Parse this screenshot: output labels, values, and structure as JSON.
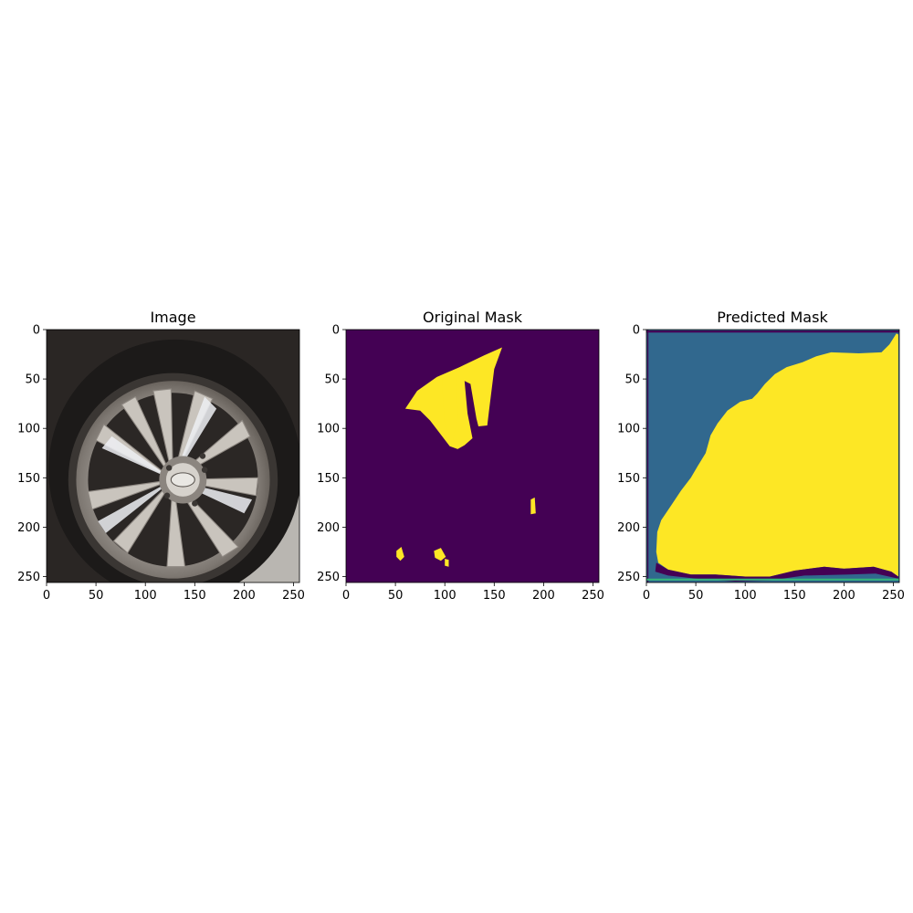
{
  "figure": {
    "background": "#ffffff",
    "colors": {
      "viridis_dark": "#440154",
      "viridis_teal": "#31688e",
      "viridis_green": "#35b779",
      "viridis_yellow": "#fde725",
      "axis": "#000000"
    }
  },
  "chart_data": [
    {
      "type": "image",
      "title": "Image",
      "content": "wheel-photo",
      "xlim": [
        0,
        256
      ],
      "ylim": [
        256,
        0
      ],
      "xticks": [
        0,
        50,
        100,
        150,
        200,
        250
      ],
      "yticks": [
        0,
        50,
        100,
        150,
        200,
        250
      ],
      "grid": false
    },
    {
      "type": "heatmap",
      "title": "Original Mask",
      "colormap": "viridis",
      "xlim": [
        0,
        256
      ],
      "ylim": [
        256,
        0
      ],
      "xticks": [
        0,
        50,
        100,
        150,
        200,
        250
      ],
      "yticks": [
        0,
        50,
        100,
        150,
        200,
        250
      ],
      "grid": false,
      "background_value_color": "#440154",
      "regions": [
        {
          "label": "damage",
          "color": "#fde725",
          "polygon": [
            [
              60,
              80
            ],
            [
              72,
              62
            ],
            [
              92,
              48
            ],
            [
              115,
              38
            ],
            [
              140,
              26
            ],
            [
              158,
              18
            ],
            [
              150,
              40
            ],
            [
              145,
              80
            ],
            [
              143,
              97
            ],
            [
              134,
              98
            ],
            [
              132,
              90
            ],
            [
              126,
              55
            ],
            [
              120,
              52
            ],
            [
              123,
              85
            ],
            [
              128,
              110
            ],
            [
              120,
              117
            ],
            [
              113,
              121
            ],
            [
              105,
              118
            ],
            [
              95,
              105
            ],
            [
              85,
              92
            ],
            [
              75,
              82
            ]
          ]
        },
        {
          "label": "damage",
          "color": "#fde725",
          "polygon": [
            [
              97,
              46
            ],
            [
              112,
              40
            ],
            [
              113,
              90
            ],
            [
              108,
              112
            ],
            [
              100,
              96
            ],
            [
              98,
              65
            ]
          ]
        },
        {
          "label": "damage",
          "color": "#fde725",
          "polygon": [
            [
              187,
              172
            ],
            [
              191,
              170
            ],
            [
              192,
              186
            ],
            [
              187,
              187
            ]
          ]
        },
        {
          "label": "damage",
          "color": "#fde725",
          "polygon": [
            [
              51,
              224
            ],
            [
              56,
              220
            ],
            [
              59,
              230
            ],
            [
              55,
              234
            ],
            [
              51,
              230
            ]
          ]
        },
        {
          "label": "damage",
          "color": "#fde725",
          "polygon": [
            [
              89,
              224
            ],
            [
              96,
              221
            ],
            [
              101,
              230
            ],
            [
              96,
              234
            ],
            [
              90,
              231
            ]
          ]
        },
        {
          "label": "damage",
          "color": "#fde725",
          "polygon": [
            [
              100,
              232
            ],
            [
              104,
              233
            ],
            [
              104,
              240
            ],
            [
              100,
              239
            ]
          ]
        }
      ]
    },
    {
      "type": "heatmap",
      "title": "Predicted Mask",
      "colormap": "viridis",
      "xlim": [
        0,
        256
      ],
      "ylim": [
        256,
        0
      ],
      "xticks": [
        0,
        50,
        100,
        150,
        200,
        250
      ],
      "yticks": [
        0,
        50,
        100,
        150,
        200,
        250
      ],
      "grid": false,
      "background_value_color": "#31688e",
      "regions": [
        {
          "label": "predicted-damage",
          "color": "#fde725",
          "polygon": [
            [
              10,
              225
            ],
            [
              11,
              205
            ],
            [
              15,
              193
            ],
            [
              25,
              178
            ],
            [
              35,
              163
            ],
            [
              45,
              150
            ],
            [
              52,
              138
            ],
            [
              60,
              125
            ],
            [
              65,
              107
            ],
            [
              72,
              95
            ],
            [
              82,
              82
            ],
            [
              95,
              73
            ],
            [
              107,
              70
            ],
            [
              112,
              65
            ],
            [
              120,
              55
            ],
            [
              130,
              45
            ],
            [
              142,
              38
            ],
            [
              158,
              33
            ],
            [
              172,
              27
            ],
            [
              187,
              23
            ],
            [
              215,
              24
            ],
            [
              238,
              23
            ],
            [
              246,
              15
            ],
            [
              253,
              4
            ],
            [
              255,
              5
            ],
            [
              255,
              250
            ],
            [
              248,
              245
            ],
            [
              230,
              240
            ],
            [
              200,
              242
            ],
            [
              180,
              240
            ],
            [
              150,
              244
            ],
            [
              125,
              250
            ],
            [
              100,
              250
            ],
            [
              70,
              248
            ],
            [
              45,
              248
            ],
            [
              22,
              243
            ],
            [
              12,
              236
            ]
          ]
        },
        {
          "label": "edge",
          "color": "#440154",
          "polygon": [
            [
              10,
              236
            ],
            [
              22,
              243
            ],
            [
              45,
              248
            ],
            [
              70,
              248
            ],
            [
              100,
              250
            ],
            [
              125,
              250
            ],
            [
              150,
              244
            ],
            [
              180,
              240
            ],
            [
              200,
              242
            ],
            [
              230,
              240
            ],
            [
              248,
              245
            ],
            [
              255,
              250
            ],
            [
              255,
              252
            ],
            [
              232,
              247
            ],
            [
              205,
              248
            ],
            [
              160,
              249
            ],
            [
              125,
              254
            ],
            [
              90,
              255
            ],
            [
              50,
              252
            ],
            [
              22,
              249
            ],
            [
              9,
              245
            ]
          ]
        },
        {
          "label": "edge",
          "color": "#440154",
          "polygon": [
            [
              0,
              1
            ],
            [
              256,
              1
            ],
            [
              256,
              3
            ],
            [
              0,
              3
            ]
          ]
        },
        {
          "label": "edge",
          "color": "#440154",
          "polygon": [
            [
              1,
              0
            ],
            [
              2,
              0
            ],
            [
              2,
              256
            ],
            [
              1,
              256
            ]
          ]
        },
        {
          "label": "edge",
          "color": "#35b779",
          "polygon": [
            [
              0,
              252
            ],
            [
              256,
              252
            ],
            [
              256,
              254
            ],
            [
              0,
              254
            ]
          ]
        }
      ]
    }
  ]
}
